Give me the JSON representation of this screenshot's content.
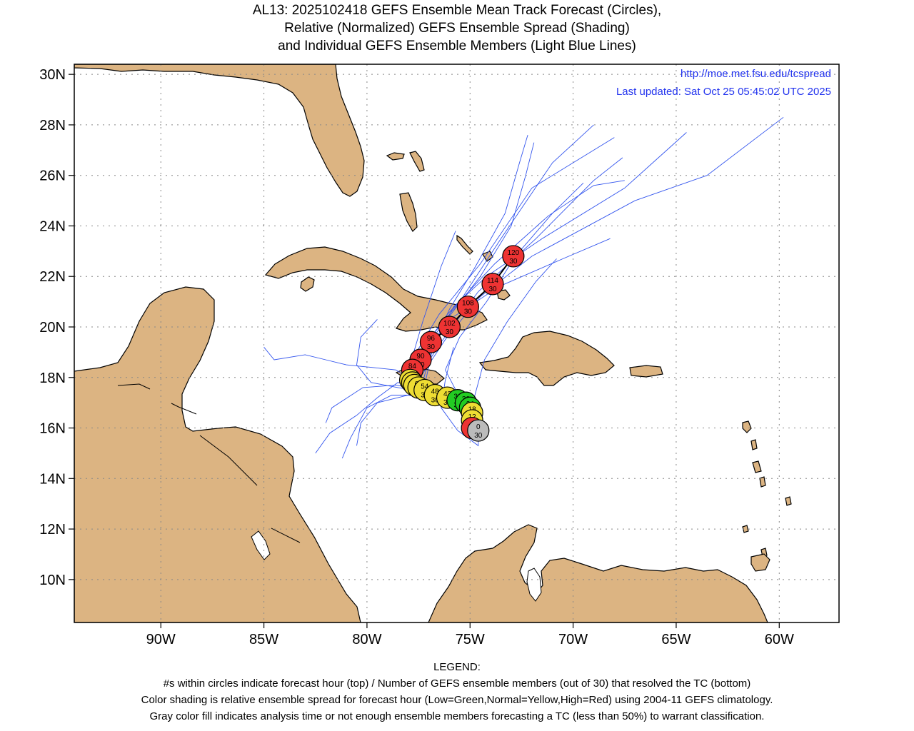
{
  "title": {
    "line1": "AL13: 2025102418 GEFS Ensemble Mean Track Forecast (Circles),",
    "line2": "Relative (Normalized) GEFS Ensemble Spread (Shading)",
    "line3": "and Individual GEFS Ensemble Members (Light Blue Lines)"
  },
  "info": {
    "url": "http://moe.met.fsu.edu/tcspread",
    "updated": "Last updated: Sat Oct 25 05:45:02 UTC 2025"
  },
  "axes": {
    "lat_labels": [
      "30N",
      "28N",
      "26N",
      "24N",
      "22N",
      "20N",
      "18N",
      "16N",
      "14N",
      "12N",
      "10N"
    ],
    "lat_values": [
      30,
      28,
      26,
      24,
      22,
      20,
      18,
      16,
      14,
      12,
      10
    ],
    "lon_labels": [
      "90W",
      "85W",
      "80W",
      "75W",
      "70W",
      "65W",
      "60W"
    ],
    "lon_values": [
      -90,
      -85,
      -80,
      -75,
      -70,
      -65,
      -60
    ],
    "lon_range": [
      -94.2,
      -57.1
    ],
    "lat_range": [
      8.3,
      30.4
    ]
  },
  "colors": {
    "land": "#dcb482",
    "ocean": "#ffffff",
    "member_track": "#3355ee",
    "spread_low": "#22cc22",
    "spread_normal": "#eedd33",
    "spread_high": "#ee3333",
    "analysis": "#bbbbbb"
  },
  "mean_track": [
    {
      "hour": "0",
      "members": "30",
      "lat": 15.9,
      "lon": -74.6,
      "spread": "analysis"
    },
    {
      "hour": "6",
      "members": "30",
      "lat": 16.0,
      "lon": -74.9,
      "spread": "high"
    },
    {
      "hour": "12",
      "members": "30",
      "lat": 16.3,
      "lon": -74.9,
      "spread": "normal"
    },
    {
      "hour": "18",
      "members": "30",
      "lat": 16.6,
      "lon": -74.9,
      "spread": "normal"
    },
    {
      "hour": "24",
      "members": "30",
      "lat": 16.8,
      "lon": -75.0,
      "spread": "low"
    },
    {
      "hour": "30",
      "members": "30",
      "lat": 17.0,
      "lon": -75.2,
      "spread": "low"
    },
    {
      "hour": "36",
      "members": "30",
      "lat": 17.1,
      "lon": -75.6,
      "spread": "low"
    },
    {
      "hour": "42",
      "members": "30",
      "lat": 17.2,
      "lon": -76.1,
      "spread": "normal"
    },
    {
      "hour": "48",
      "members": "30",
      "lat": 17.3,
      "lon": -76.7,
      "spread": "normal"
    },
    {
      "hour": "54",
      "members": "30",
      "lat": 17.5,
      "lon": -77.2,
      "spread": "normal"
    },
    {
      "hour": "60",
      "members": "30",
      "lat": 17.6,
      "lon": -77.5,
      "spread": "normal"
    },
    {
      "hour": "66",
      "members": "30",
      "lat": 17.7,
      "lon": -77.7,
      "spread": "normal"
    },
    {
      "hour": "72",
      "members": "30",
      "lat": 17.8,
      "lon": -77.8,
      "spread": "normal"
    },
    {
      "hour": "78",
      "members": "30",
      "lat": 17.9,
      "lon": -77.9,
      "spread": "normal"
    },
    {
      "hour": "84",
      "members": "30",
      "lat": 18.3,
      "lon": -77.8,
      "spread": "high"
    },
    {
      "hour": "90",
      "members": "30",
      "lat": 18.7,
      "lon": -77.4,
      "spread": "high"
    },
    {
      "hour": "96",
      "members": "30",
      "lat": 19.4,
      "lon": -76.9,
      "spread": "high"
    },
    {
      "hour": "102",
      "members": "30",
      "lat": 20.0,
      "lon": -76.0,
      "spread": "high"
    },
    {
      "hour": "108",
      "members": "30",
      "lat": 20.8,
      "lon": -75.1,
      "spread": "high"
    },
    {
      "hour": "114",
      "members": "30",
      "lat": 21.7,
      "lon": -73.9,
      "spread": "high"
    },
    {
      "hour": "120",
      "members": "30",
      "lat": 22.8,
      "lon": -72.9,
      "spread": "high"
    }
  ],
  "member_tracks": [
    [
      [
        -74.6,
        15.9
      ],
      [
        -75.2,
        17.0
      ],
      [
        -77.0,
        17.5
      ],
      [
        -78.0,
        18.2
      ],
      [
        -77.0,
        19.5
      ],
      [
        -75.5,
        21.0
      ],
      [
        -73.5,
        23.5
      ],
      [
        -71.0,
        26.5
      ],
      [
        -69.0,
        28.0
      ]
    ],
    [
      [
        -74.6,
        15.9
      ],
      [
        -75.5,
        17.1
      ],
      [
        -77.5,
        17.6
      ],
      [
        -78.3,
        18.0
      ],
      [
        -77.6,
        19.0
      ],
      [
        -76.5,
        20.5
      ],
      [
        -74.5,
        22.5
      ],
      [
        -72.0,
        25.5
      ],
      [
        -68.0,
        27.5
      ]
    ],
    [
      [
        -74.6,
        15.9
      ],
      [
        -75.0,
        16.8
      ],
      [
        -76.0,
        17.2
      ],
      [
        -77.2,
        17.7
      ],
      [
        -76.8,
        19.2
      ],
      [
        -75.8,
        20.8
      ],
      [
        -74.2,
        22.0
      ],
      [
        -71.5,
        23.5
      ],
      [
        -67.5,
        25.5
      ],
      [
        -64.5,
        27.7
      ]
    ],
    [
      [
        -74.6,
        15.9
      ],
      [
        -75.0,
        16.9
      ],
      [
        -76.5,
        17.4
      ],
      [
        -77.5,
        17.9
      ],
      [
        -76.2,
        19.5
      ],
      [
        -74.5,
        21.2
      ],
      [
        -72.0,
        22.8
      ],
      [
        -67.0,
        25.0
      ],
      [
        -63.5,
        26.0
      ],
      [
        -59.8,
        28.3
      ]
    ],
    [
      [
        -74.6,
        15.9
      ],
      [
        -75.3,
        17.1
      ],
      [
        -77.2,
        17.5
      ],
      [
        -78.5,
        17.8
      ],
      [
        -79.5,
        17.2
      ],
      [
        -80.5,
        16.5
      ],
      [
        -81.8,
        15.8
      ],
      [
        -82.5,
        15.0
      ]
    ],
    [
      [
        -74.6,
        15.9
      ],
      [
        -75.2,
        17.0
      ],
      [
        -77.0,
        17.4
      ],
      [
        -78.5,
        17.6
      ],
      [
        -79.8,
        17.8
      ],
      [
        -80.5,
        18.5
      ],
      [
        -80.3,
        19.6
      ],
      [
        -79.5,
        20.3
      ]
    ],
    [
      [
        -74.6,
        15.9
      ],
      [
        -75.3,
        17.0
      ],
      [
        -77.0,
        17.3
      ],
      [
        -78.8,
        17.3
      ],
      [
        -80.0,
        16.8
      ],
      [
        -80.8,
        15.6
      ],
      [
        -81.2,
        14.8
      ]
    ],
    [
      [
        -74.6,
        15.9
      ],
      [
        -75.0,
        16.7
      ],
      [
        -76.5,
        17.1
      ],
      [
        -78.0,
        17.3
      ],
      [
        -79.5,
        17.0
      ],
      [
        -80.3,
        16.2
      ],
      [
        -80.5,
        15.3
      ]
    ],
    [
      [
        -74.6,
        15.9
      ],
      [
        -75.4,
        17.1
      ],
      [
        -77.4,
        17.7
      ],
      [
        -78.6,
        18.3
      ],
      [
        -79.8,
        18.4
      ],
      [
        -81.0,
        18.5
      ],
      [
        -82.0,
        18.7
      ],
      [
        -83.0,
        18.9
      ],
      [
        -84.5,
        18.7
      ],
      [
        -85.0,
        19.2
      ]
    ],
    [
      [
        -74.6,
        15.9
      ],
      [
        -75.1,
        16.9
      ],
      [
        -76.8,
        17.4
      ],
      [
        -77.8,
        18.1
      ],
      [
        -76.6,
        19.8
      ],
      [
        -74.5,
        22.0
      ],
      [
        -73.0,
        24.0
      ],
      [
        -72.3,
        26.0
      ],
      [
        -71.9,
        27.3
      ]
    ],
    [
      [
        -74.6,
        15.9
      ],
      [
        -74.8,
        16.5
      ],
      [
        -75.5,
        17.2
      ],
      [
        -76.2,
        18.3
      ],
      [
        -75.5,
        19.6
      ],
      [
        -74.2,
        21.0
      ],
      [
        -72.8,
        22.8
      ],
      [
        -71.0,
        24.5
      ],
      [
        -69.5,
        25.7
      ]
    ],
    [
      [
        -74.6,
        15.9
      ],
      [
        -75.2,
        17.0
      ],
      [
        -76.6,
        17.3
      ],
      [
        -77.6,
        17.9
      ],
      [
        -76.4,
        19.4
      ],
      [
        -74.6,
        21.4
      ],
      [
        -71.8,
        23.5
      ],
      [
        -69.0,
        25.8
      ],
      [
        -67.6,
        26.7
      ]
    ],
    [
      [
        -74.6,
        15.9
      ],
      [
        -75.0,
        16.8
      ],
      [
        -76.2,
        17.2
      ],
      [
        -77.3,
        17.8
      ],
      [
        -76.9,
        19.0
      ],
      [
        -76.0,
        20.7
      ],
      [
        -74.8,
        22.3
      ],
      [
        -73.3,
        24.5
      ],
      [
        -72.6,
        26.5
      ],
      [
        -72.2,
        27.6
      ]
    ],
    [
      [
        -74.6,
        15.9
      ],
      [
        -74.6,
        15.3
      ],
      [
        -75.6,
        15.9
      ],
      [
        -76.4,
        16.8
      ],
      [
        -76.2,
        17.9
      ],
      [
        -75.8,
        19.2
      ]
    ],
    [
      [
        -74.6,
        15.9
      ],
      [
        -74.4,
        15.7
      ],
      [
        -74.9,
        16.9
      ],
      [
        -74.3,
        18.7
      ],
      [
        -73.2,
        20.2
      ],
      [
        -71.8,
        21.8
      ],
      [
        -70.8,
        22.7
      ]
    ],
    [
      [
        -74.6,
        15.9
      ],
      [
        -75.3,
        17.1
      ],
      [
        -77.0,
        17.6
      ],
      [
        -78.2,
        18.0
      ],
      [
        -77.8,
        18.8
      ],
      [
        -77.3,
        20.2
      ],
      [
        -76.4,
        22.4
      ],
      [
        -75.7,
        23.8
      ]
    ],
    [
      [
        -74.6,
        15.9
      ],
      [
        -75.2,
        17.0
      ],
      [
        -77.1,
        17.6
      ],
      [
        -77.9,
        18.1
      ],
      [
        -77.1,
        19.0
      ],
      [
        -75.8,
        20.4
      ],
      [
        -73.6,
        21.6
      ],
      [
        -70.5,
        22.7
      ],
      [
        -68.2,
        23.5
      ]
    ],
    [
      [
        -74.6,
        15.9
      ],
      [
        -75.1,
        17.0
      ],
      [
        -76.9,
        17.5
      ],
      [
        -78.1,
        17.9
      ],
      [
        -77.5,
        18.9
      ],
      [
        -76.1,
        20.5
      ],
      [
        -73.8,
        22.5
      ],
      [
        -71.2,
        24.4
      ],
      [
        -69.0,
        25.6
      ],
      [
        -67.5,
        25.8
      ]
    ],
    [
      [
        -74.6,
        15.9
      ],
      [
        -75.3,
        17.0
      ],
      [
        -77.2,
        17.5
      ],
      [
        -78.6,
        17.7
      ],
      [
        -80.2,
        17.6
      ],
      [
        -81.7,
        16.8
      ],
      [
        -82.0,
        16.2
      ]
    ]
  ],
  "legend": {
    "heading": "LEGEND:",
    "line1": "#s within circles indicate forecast hour (top) / Number of GEFS ensemble members (out of 30) that resolved the TC (bottom)",
    "line2": "Color shading is relative ensemble spread for forecast hour (Low=Green,Normal=Yellow,High=Red) using 2004-11 GEFS climatology.",
    "line3": "Gray color fill indicates analysis time or not enough ensemble members forecasting a TC (less than 50%) to warrant classification."
  }
}
